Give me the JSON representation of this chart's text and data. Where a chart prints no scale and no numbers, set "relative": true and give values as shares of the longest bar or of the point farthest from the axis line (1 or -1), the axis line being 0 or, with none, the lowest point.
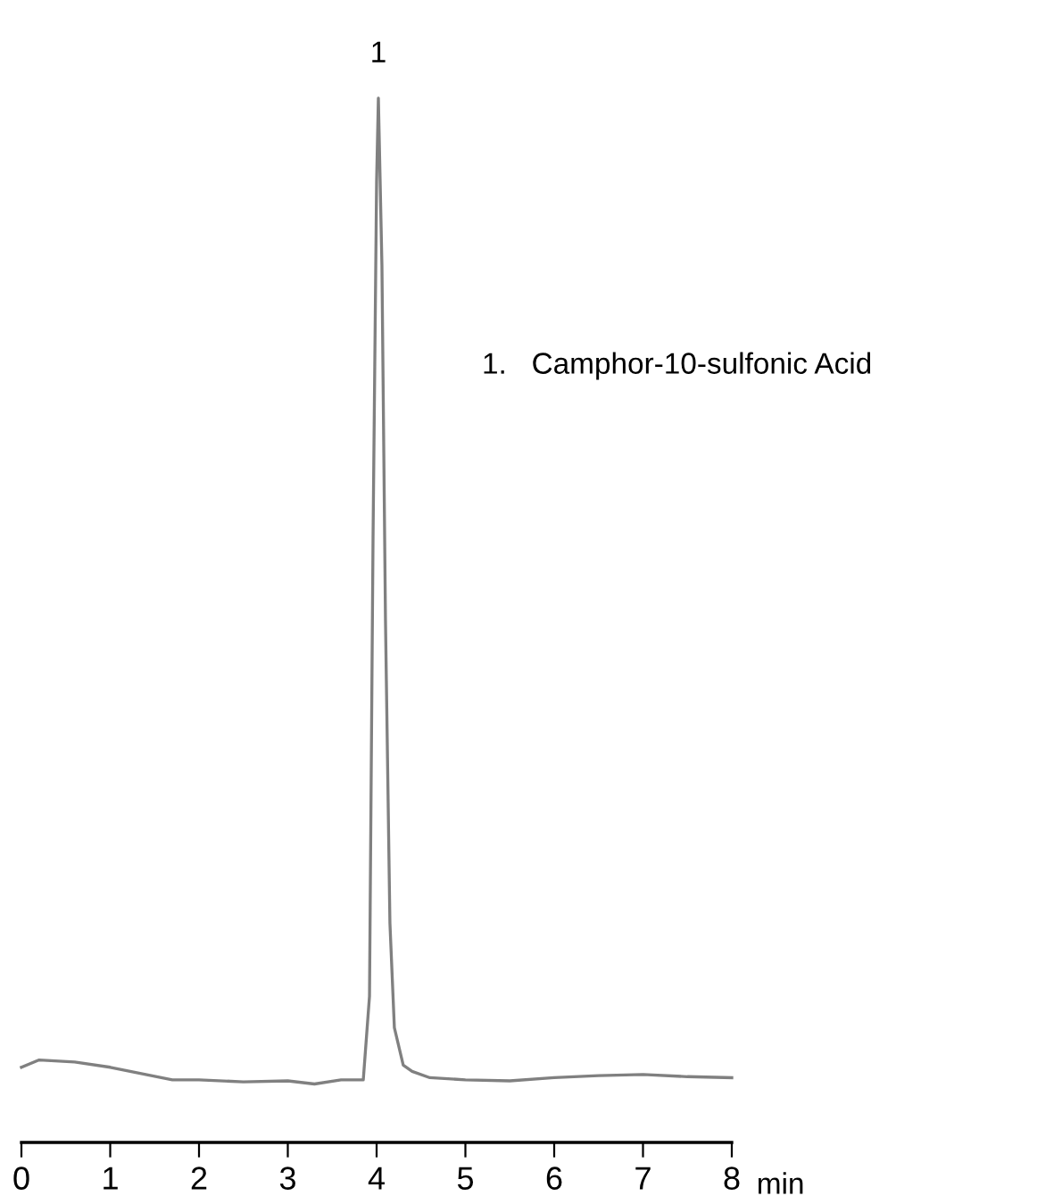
{
  "chart_data": {
    "type": "line",
    "relative": true,
    "xlabel": "min",
    "xlim": [
      0,
      8
    ],
    "xticks": [
      0,
      1,
      2,
      3,
      4,
      5,
      6,
      7,
      8
    ],
    "tick_labels": "x",
    "grid": false,
    "legend": false,
    "marker": "none",
    "line_style": "solid",
    "series": [
      {
        "color": "#808080",
        "x": [
          0,
          0.2,
          0.6,
          1.0,
          1.4,
          1.7,
          2.0,
          2.5,
          3.0,
          3.3,
          3.6,
          3.85,
          3.92,
          3.96,
          4.0,
          4.02,
          4.06,
          4.1,
          4.15,
          4.2,
          4.3,
          4.4,
          4.6,
          5.0,
          5.5,
          6.0,
          6.5,
          7.0,
          7.5,
          8.0
        ],
        "values": [
          0.072,
          0.079,
          0.077,
          0.072,
          0.065,
          0.06,
          0.06,
          0.058,
          0.059,
          0.056,
          0.06,
          0.06,
          0.14,
          0.58,
          0.92,
          1.0,
          0.84,
          0.5,
          0.21,
          0.11,
          0.074,
          0.068,
          0.062,
          0.06,
          0.059,
          0.062,
          0.064,
          0.065,
          0.063,
          0.062
        ]
      }
    ],
    "annotations": [
      {
        "text": "1",
        "x": 4.02,
        "y": 1.0
      },
      "1.   Camphor-10-sulfonic Acid"
    ]
  }
}
